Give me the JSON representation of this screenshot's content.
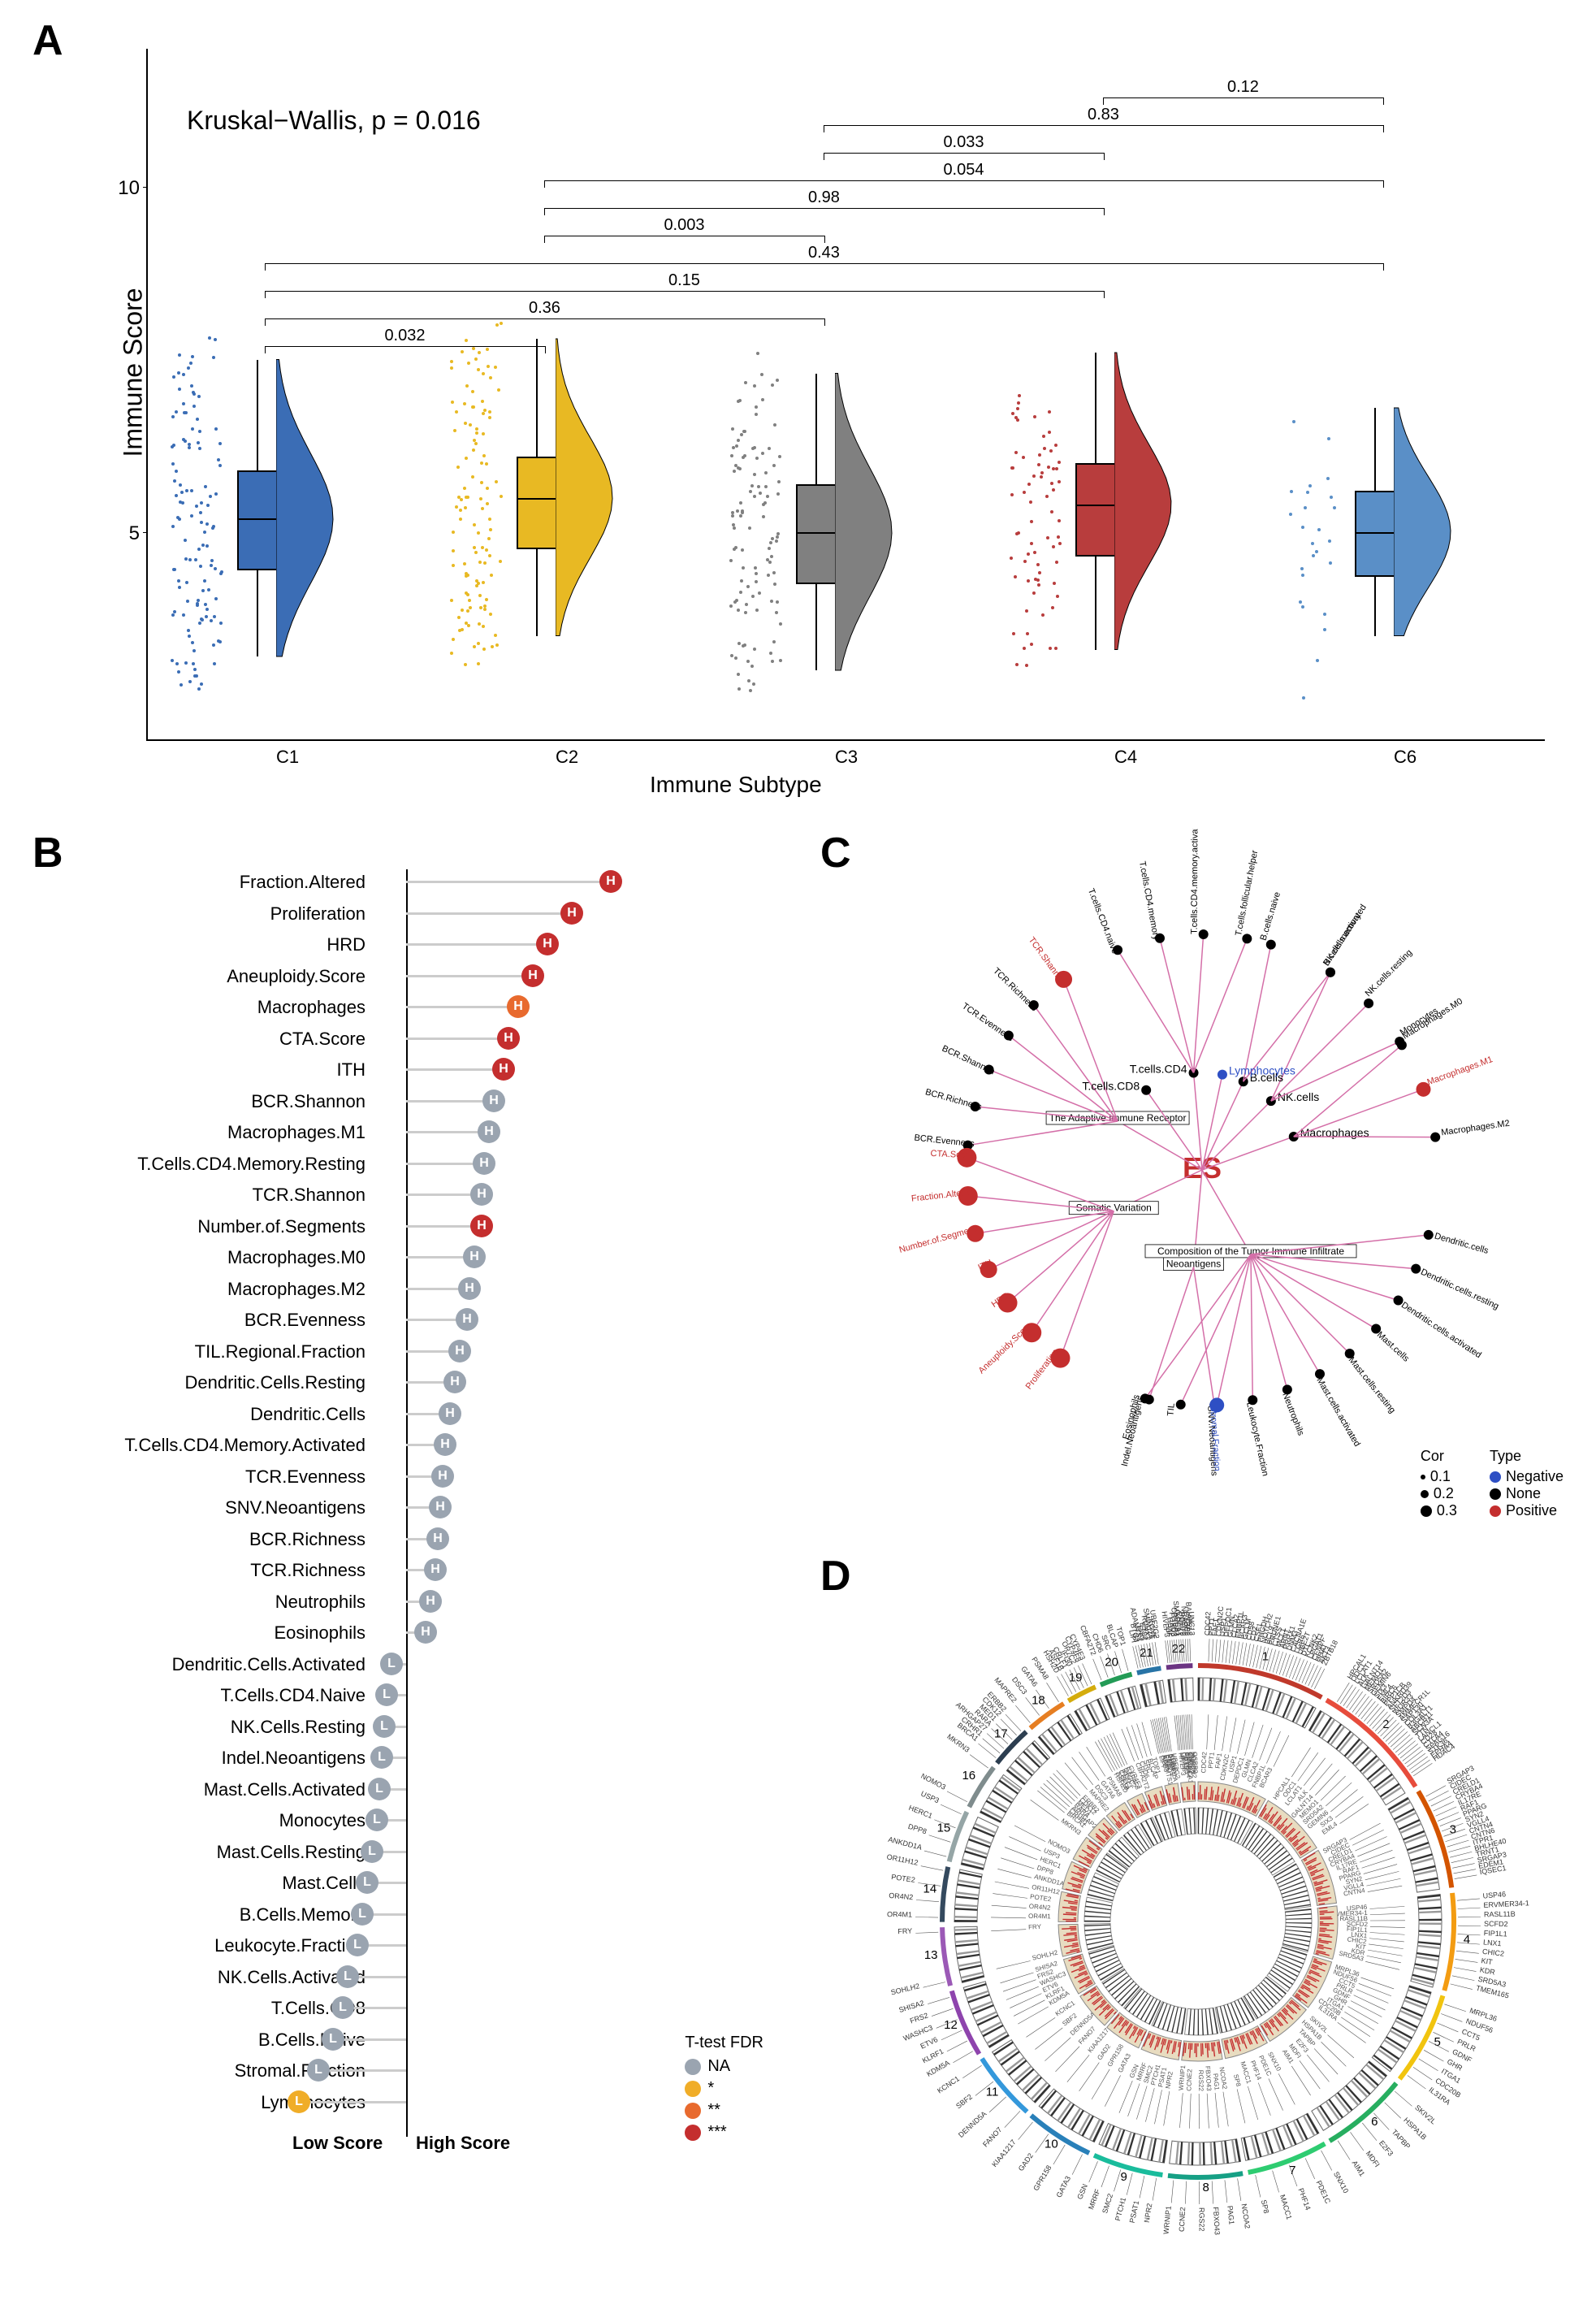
{
  "panelA": {
    "label": "A",
    "type": "raincloud-boxplot",
    "kruskal_wallis_text": "Kruskal−Wallis, p = 0.016",
    "y_axis_label": "Immune Score",
    "x_axis_label": "Immune Subtype",
    "ylim": [
      2,
      12
    ],
    "yticks": [
      5,
      10
    ],
    "background_color": "#ffffff",
    "title_fontsize": 32,
    "label_fontsize": 28,
    "tick_fontsize": 24,
    "groups": [
      {
        "name": "C1",
        "color": "#3b6db5",
        "median": 5.2,
        "q1": 4.5,
        "q3": 5.9,
        "whisker_low": 3.2,
        "whisker_high": 7.5,
        "n_points": 120
      },
      {
        "name": "C2",
        "color": "#e8b923",
        "median": 5.5,
        "q1": 4.8,
        "q3": 6.1,
        "whisker_low": 3.5,
        "whisker_high": 7.8,
        "n_points": 115
      },
      {
        "name": "C3",
        "color": "#808080",
        "median": 5.0,
        "q1": 4.3,
        "q3": 5.7,
        "whisker_low": 3.0,
        "whisker_high": 7.3,
        "n_points": 110
      },
      {
        "name": "C4",
        "color": "#b83d3d",
        "median": 5.4,
        "q1": 4.7,
        "q3": 6.0,
        "whisker_low": 3.3,
        "whisker_high": 7.6,
        "n_points": 70
      },
      {
        "name": "C6",
        "color": "#5a8fc7",
        "median": 5.0,
        "q1": 4.4,
        "q3": 5.6,
        "whisker_low": 3.5,
        "whisker_high": 6.8,
        "n_points": 25
      }
    ],
    "comparisons": [
      {
        "g1": 0,
        "g2": 1,
        "p": "0.032",
        "y": 7.7
      },
      {
        "g1": 0,
        "g2": 2,
        "p": "0.36",
        "y": 8.1
      },
      {
        "g1": 0,
        "g2": 3,
        "p": "0.15",
        "y": 8.5
      },
      {
        "g1": 0,
        "g2": 4,
        "p": "0.43",
        "y": 8.9
      },
      {
        "g1": 1,
        "g2": 2,
        "p": "0.003",
        "y": 9.3
      },
      {
        "g1": 1,
        "g2": 3,
        "p": "0.98",
        "y": 9.7
      },
      {
        "g1": 1,
        "g2": 4,
        "p": "0.054",
        "y": 10.1
      },
      {
        "g1": 2,
        "g2": 3,
        "p": "0.033",
        "y": 10.5
      },
      {
        "g1": 2,
        "g2": 4,
        "p": "0.83",
        "y": 10.9
      },
      {
        "g1": 3,
        "g2": 4,
        "p": "0.12",
        "y": 11.3
      }
    ]
  },
  "panelB": {
    "label": "B",
    "type": "lollipop",
    "x_label_low": "Low Score",
    "x_label_high": "High Score",
    "axis_x": 0,
    "colors": {
      "NA": "#9aa4b0",
      "*": "#f0ad28",
      "**": "#e86a2e",
      "***": "#c42e2e"
    },
    "legend_title": "T-test FDR",
    "legend_items": [
      {
        "label": "NA",
        "color": "#9aa4b0"
      },
      {
        "label": "*",
        "color": "#f0ad28"
      },
      {
        "label": "**",
        "color": "#e86a2e"
      },
      {
        "label": "***",
        "color": "#c42e2e"
      }
    ],
    "items": [
      {
        "name": "Fraction.Altered",
        "value": 4.2,
        "side": "H",
        "sig": "***"
      },
      {
        "name": "Proliferation",
        "value": 3.4,
        "side": "H",
        "sig": "***"
      },
      {
        "name": "HRD",
        "value": 2.9,
        "side": "H",
        "sig": "***"
      },
      {
        "name": "Aneuploidy.Score",
        "value": 2.6,
        "side": "H",
        "sig": "***"
      },
      {
        "name": "Macrophages",
        "value": 2.3,
        "side": "H",
        "sig": "**"
      },
      {
        "name": "CTA.Score",
        "value": 2.1,
        "side": "H",
        "sig": "***"
      },
      {
        "name": "ITH",
        "value": 2.0,
        "side": "H",
        "sig": "***"
      },
      {
        "name": "BCR.Shannon",
        "value": 1.8,
        "side": "H",
        "sig": "NA"
      },
      {
        "name": "Macrophages.M1",
        "value": 1.7,
        "side": "H",
        "sig": "NA"
      },
      {
        "name": "T.Cells.CD4.Memory.Resting",
        "value": 1.6,
        "side": "H",
        "sig": "NA"
      },
      {
        "name": "TCR.Shannon",
        "value": 1.55,
        "side": "H",
        "sig": "NA"
      },
      {
        "name": "Number.of.Segments",
        "value": 1.55,
        "side": "H",
        "sig": "***"
      },
      {
        "name": "Macrophages.M0",
        "value": 1.4,
        "side": "H",
        "sig": "NA"
      },
      {
        "name": "Macrophages.M2",
        "value": 1.3,
        "side": "H",
        "sig": "NA"
      },
      {
        "name": "BCR.Evenness",
        "value": 1.25,
        "side": "H",
        "sig": "NA"
      },
      {
        "name": "TIL.Regional.Fraction",
        "value": 1.1,
        "side": "H",
        "sig": "NA"
      },
      {
        "name": "Dendritic.Cells.Resting",
        "value": 1.0,
        "side": "H",
        "sig": "NA"
      },
      {
        "name": "Dendritic.Cells",
        "value": 0.9,
        "side": "H",
        "sig": "NA"
      },
      {
        "name": "T.Cells.CD4.Memory.Activated",
        "value": 0.8,
        "side": "H",
        "sig": "NA"
      },
      {
        "name": "TCR.Evenness",
        "value": 0.75,
        "side": "H",
        "sig": "NA"
      },
      {
        "name": "SNV.Neoantigens",
        "value": 0.7,
        "side": "H",
        "sig": "NA"
      },
      {
        "name": "BCR.Richness",
        "value": 0.65,
        "side": "H",
        "sig": "NA"
      },
      {
        "name": "TCR.Richness",
        "value": 0.6,
        "side": "H",
        "sig": "NA"
      },
      {
        "name": "Neutrophils",
        "value": 0.5,
        "side": "H",
        "sig": "NA"
      },
      {
        "name": "Eosinophils",
        "value": 0.4,
        "side": "H",
        "sig": "NA"
      },
      {
        "name": "Dendritic.Cells.Activated",
        "value": -0.3,
        "side": "L",
        "sig": "NA"
      },
      {
        "name": "T.Cells.CD4.Naive",
        "value": -0.4,
        "side": "L",
        "sig": "NA"
      },
      {
        "name": "NK.Cells.Resting",
        "value": -0.45,
        "side": "L",
        "sig": "NA"
      },
      {
        "name": "Indel.Neoantigens",
        "value": -0.5,
        "side": "L",
        "sig": "NA"
      },
      {
        "name": "Mast.Cells.Activated",
        "value": -0.55,
        "side": "L",
        "sig": "NA"
      },
      {
        "name": "Monocytes",
        "value": -0.6,
        "side": "L",
        "sig": "NA"
      },
      {
        "name": "Mast.Cells.Resting",
        "value": -0.7,
        "side": "L",
        "sig": "NA"
      },
      {
        "name": "Mast.Cells",
        "value": -0.8,
        "side": "L",
        "sig": "NA"
      },
      {
        "name": "B.Cells.Memory",
        "value": -0.9,
        "side": "L",
        "sig": "NA"
      },
      {
        "name": "Leukocyte.Fraction",
        "value": -1.0,
        "side": "L",
        "sig": "NA"
      },
      {
        "name": "NK.Cells.Activated",
        "value": -1.2,
        "side": "L",
        "sig": "NA"
      },
      {
        "name": "T.Cells.CD8",
        "value": -1.3,
        "side": "L",
        "sig": "NA"
      },
      {
        "name": "B.Cells.Naive",
        "value": -1.5,
        "side": "L",
        "sig": "NA"
      },
      {
        "name": "Stromal.Fraction",
        "value": -1.8,
        "side": "L",
        "sig": "NA"
      },
      {
        "name": "Lymphocytes",
        "value": -2.2,
        "side": "L",
        "sig": "*"
      }
    ]
  },
  "panelC": {
    "label": "C",
    "type": "tree-radial",
    "center_label": "ES",
    "center_color": "#c42e2e",
    "edge_color": "#d46fa8",
    "legend": {
      "cor_title": "Cor",
      "cor_sizes": [
        {
          "label": "0.1",
          "size": 6
        },
        {
          "label": "0.2",
          "size": 10
        },
        {
          "label": "0.3",
          "size": 14
        }
      ],
      "type_title": "Type",
      "type_items": [
        {
          "label": "Negative",
          "color": "#2e4fc4"
        },
        {
          "label": "None",
          "color": "#000000"
        },
        {
          "label": "Positive",
          "color": "#c42e2e"
        }
      ]
    },
    "groups": [
      {
        "name": "The Adaptive Immune Receptor",
        "angle": 150,
        "children": [
          {
            "name": "TCR.Shannon",
            "type": "Positive",
            "cor": 0.25
          },
          {
            "name": "TCR.Richness",
            "type": "None",
            "cor": 0.1
          },
          {
            "name": "TCR.Evenness",
            "type": "None",
            "cor": 0.1
          },
          {
            "name": "BCR.Shannon",
            "type": "None",
            "cor": 0.1
          },
          {
            "name": "BCR.Richness",
            "type": "None",
            "cor": 0.1
          },
          {
            "name": "BCR.Evenness",
            "type": "None",
            "cor": 0.1
          }
        ]
      },
      {
        "name": "Somatic Variation",
        "angle": 205,
        "children": [
          {
            "name": "CTA.Score",
            "type": "Positive",
            "cor": 0.3
          },
          {
            "name": "Fraction.Altered",
            "type": "Positive",
            "cor": 0.3
          },
          {
            "name": "Number.of.Segments",
            "type": "Positive",
            "cor": 0.25
          },
          {
            "name": "ITH",
            "type": "Positive",
            "cor": 0.25
          },
          {
            "name": "HRD",
            "type": "Positive",
            "cor": 0.3
          },
          {
            "name": "Aneuploidy.Score",
            "type": "Positive",
            "cor": 0.3
          },
          {
            "name": "Proliferation",
            "type": "Positive",
            "cor": 0.3
          }
        ]
      },
      {
        "name": "Neoantigens",
        "angle": 265,
        "children": [
          {
            "name": "Indel.Neoantigens",
            "type": "None",
            "cor": 0.1
          },
          {
            "name": "SNV.Neoantigens",
            "type": "None",
            "cor": 0.1
          }
        ]
      },
      {
        "name": "Composition of the Tumor Immune Infiltrate",
        "angle": 300,
        "children": [
          {
            "name": "Eosinophils",
            "type": "None",
            "cor": 0.1
          },
          {
            "name": "TIL",
            "type": "None",
            "cor": 0.1
          },
          {
            "name": "Stromal.Fraction",
            "type": "Negative",
            "cor": 0.2
          },
          {
            "name": "Leukocyte.Fraction",
            "type": "None",
            "cor": 0.1
          },
          {
            "name": "Neutrophils",
            "type": "None",
            "cor": 0.1
          },
          {
            "name": "Mast.cells.activated",
            "type": "None",
            "cor": 0.1
          },
          {
            "name": "Mast.cells.resting",
            "type": "None",
            "cor": 0.1
          },
          {
            "name": "Mast.cells",
            "type": "None",
            "cor": 0.1
          },
          {
            "name": "Dendritic.cells.activated",
            "type": "None",
            "cor": 0.1
          },
          {
            "name": "Dendritic.cells.resting",
            "type": "None",
            "cor": 0.1
          },
          {
            "name": "Dendritic.cells",
            "type": "None",
            "cor": 0.1
          }
        ]
      },
      {
        "name": "Macrophages",
        "angle": 20,
        "direct": true,
        "children": [
          {
            "name": "Macrophages.M2",
            "type": "None",
            "cor": 0.1
          },
          {
            "name": "Macrophages.M1",
            "type": "Positive",
            "cor": 0.2
          },
          {
            "name": "Macrophages.M0",
            "type": "None",
            "cor": 0.1
          }
        ]
      },
      {
        "name": "NK.cells",
        "angle": 45,
        "direct": true,
        "children": [
          {
            "name": "Monocytes",
            "type": "None",
            "cor": 0.1
          },
          {
            "name": "NK.cells.resting",
            "type": "None",
            "cor": 0.1
          },
          {
            "name": "NK.cells.activated",
            "type": "None",
            "cor": 0.1
          }
        ]
      },
      {
        "name": "B.cells",
        "angle": 65,
        "direct": true,
        "children": [
          {
            "name": "B.cells.memory",
            "type": "None",
            "cor": 0.1
          },
          {
            "name": "B.cells.naive",
            "type": "None",
            "cor": 0.1
          }
        ]
      },
      {
        "name": "Lymphocytes",
        "angle": 78,
        "direct": true,
        "color": "#2e4fc4",
        "children": []
      },
      {
        "name": "T.cells.CD4",
        "angle": 95,
        "direct": true,
        "children": [
          {
            "name": "T.cells.follicular.helper",
            "type": "None",
            "cor": 0.1
          },
          {
            "name": "T.cells.CD4.memory.activated",
            "type": "None",
            "cor": 0.1
          },
          {
            "name": "T.cells.CD4.memory",
            "type": "None",
            "cor": 0.1
          },
          {
            "name": "T.cells.CD4.naive",
            "type": "None",
            "cor": 0.1
          }
        ]
      },
      {
        "name": "T.cells.CD8",
        "angle": 125,
        "direct": true,
        "children": []
      }
    ]
  },
  "panelD": {
    "label": "D",
    "type": "circos",
    "chromosomes": [
      "1",
      "2",
      "3",
      "4",
      "5",
      "6",
      "7",
      "8",
      "9",
      "10",
      "11",
      "12",
      "13",
      "14",
      "15",
      "16",
      "17",
      "18",
      "19",
      "20",
      "21",
      "22"
    ],
    "chromosome_colors": [
      "#c0392b",
      "#e74c3c",
      "#d35400",
      "#f39c12",
      "#f1c40f",
      "#27ae60",
      "#2ecc71",
      "#16a085",
      "#1abc9c",
      "#2980b9",
      "#3498db",
      "#8e44ad",
      "#9b59b6",
      "#34495e",
      "#95a5a6",
      "#7f8c8d",
      "#2c3e50",
      "#e67e22",
      "#d4ac0d",
      "#239b56",
      "#2874a6",
      "#6c3483"
    ],
    "ideogram_bg": "#e8dcc0",
    "histogram_color": "#c42e2e",
    "band_color": "#333333",
    "outer_genes": {
      "1": [
        "CDC42",
        "PPT1",
        "FAF1",
        "CDKN2C",
        "USP1",
        "DEPDC1",
        "GLMN",
        "CLCA2",
        "FNBP1L",
        "BCAR3",
        "GCLM",
        "CD58",
        "CD2",
        "CSF1",
        "PHGDH",
        "NOTCH2",
        "BCL9",
        "PRUNE1",
        "CTSS",
        "MCL1",
        "ARNT",
        "PRRX1",
        "DNM3",
        "CACNA1E",
        "LGR6",
        "UBE2T",
        "DTL",
        "KCNK2",
        "LPGAT1",
        "CENPF",
        "HHAT",
        "AKT3",
        "ZBTB18"
      ],
      "2": [
        "HPCAL1",
        "ODC1",
        "LCLAT1",
        "ALK",
        "GALNT14",
        "MEMO1",
        "SRD5A2",
        "GEMIN6",
        "SIX3",
        "EML4",
        "BIRC6",
        "PPP1CB",
        "ANKRD39",
        "SFT2D3",
        "WDR33",
        "SMPD4",
        "AMMECR1L",
        "SAP130",
        "COL3A1",
        "B3GALT1",
        "ABCB11",
        "SCN3A",
        "TTN",
        "LANCL1",
        "CD28",
        "CTLA4",
        "SPAG16",
        "STK36",
        "EPHA4",
        "HDAC4"
      ],
      "3": [
        "SRGAP3",
        "CIDEC",
        "CRELD1",
        "CRYBA4",
        "IL17RE",
        "RAF1",
        "PPARG",
        "SYN2",
        "VGLL4",
        "CNTN4",
        "CNTN6",
        "ITPR1",
        "BHLHE40",
        "TRNT1",
        "SRGAP3",
        "EDEM1",
        "IQSEC1"
      ],
      "4": [
        "USP46",
        "ERVMER34-1",
        "RASL11B",
        "SCFD2",
        "FIP1L1",
        "LNX1",
        "CHIC2",
        "KIT",
        "KDR",
        "SRD5A3",
        "TMEM165"
      ],
      "5": [
        "MRPL36",
        "NDUF56",
        "CCT5",
        "PRLR",
        "GDNF",
        "GHR",
        "ITGA1",
        "CDC20B",
        "IL31RA"
      ],
      "6": [
        "SKIV2L",
        "HSPA1B",
        "TAPBP",
        "E2F3",
        "MDFI",
        "AIM1"
      ],
      "7": [
        "SNX10",
        "PDE1C",
        "PHF14",
        "MACC1",
        "SP8"
      ],
      "8": [
        "NCOA2",
        "PAG1",
        "FBXO43",
        "RGS22",
        "CCNE2",
        "WRNIP1"
      ],
      "9": [
        "NPR2",
        "PSAT1",
        "PTCH1",
        "SMC2",
        "MRRF",
        "GSN"
      ],
      "10": [
        "GATA3",
        "GPR158",
        "GAD2",
        "KIAA1217"
      ],
      "11": [
        "FANO7",
        "DENND5A",
        "SBF2",
        "KCNC1"
      ],
      "12": [
        "KDM5A",
        "KLRF1",
        "ETV6",
        "WASHC3",
        "FRS2",
        "SHISA2"
      ],
      "13": [
        "SOHLH2",
        "FRY"
      ],
      "14": [
        "OR4M1",
        "OR4N2",
        "POTE2",
        "OR11H12"
      ],
      "15": [
        "ANKDD1A",
        "DPP8",
        "HERC1",
        "USP3"
      ],
      "16": [
        "NOMO3",
        "MKRN3"
      ],
      "17": [
        "BRCA1",
        "CRHR1",
        "ARHGAP27",
        "RARA",
        "MED1",
        "CDK12",
        "ERBB2"
      ],
      "18": [
        "MAPRE2",
        "DSC3",
        "GATA6",
        "PSMA8"
      ],
      "19": [
        "HSH2D",
        "ASF1B",
        "CRLF1",
        "IFI30",
        "OR7C2",
        "CYP4F8",
        "CYP4F3"
      ],
      "20": [
        "CBFA2T2",
        "CHD6",
        "SRC",
        "BLCAP",
        "TOP1"
      ],
      "21": [
        "LIPI",
        "BTG3",
        "ADAMTS1",
        "ERG",
        "ETS2",
        "RUNX1",
        "SMIM11A",
        "KCNE",
        "UBE2G2"
      ],
      "22": [
        "HIVEP3",
        "LIF",
        "GBX2",
        "FOXD3",
        "CRYBA4",
        "SMARCA1",
        "CHEK2",
        "ZNHIT2",
        "NCAPH2",
        "OSBP2",
        "BAIAP2L2",
        "UNC13"
      ]
    }
  }
}
